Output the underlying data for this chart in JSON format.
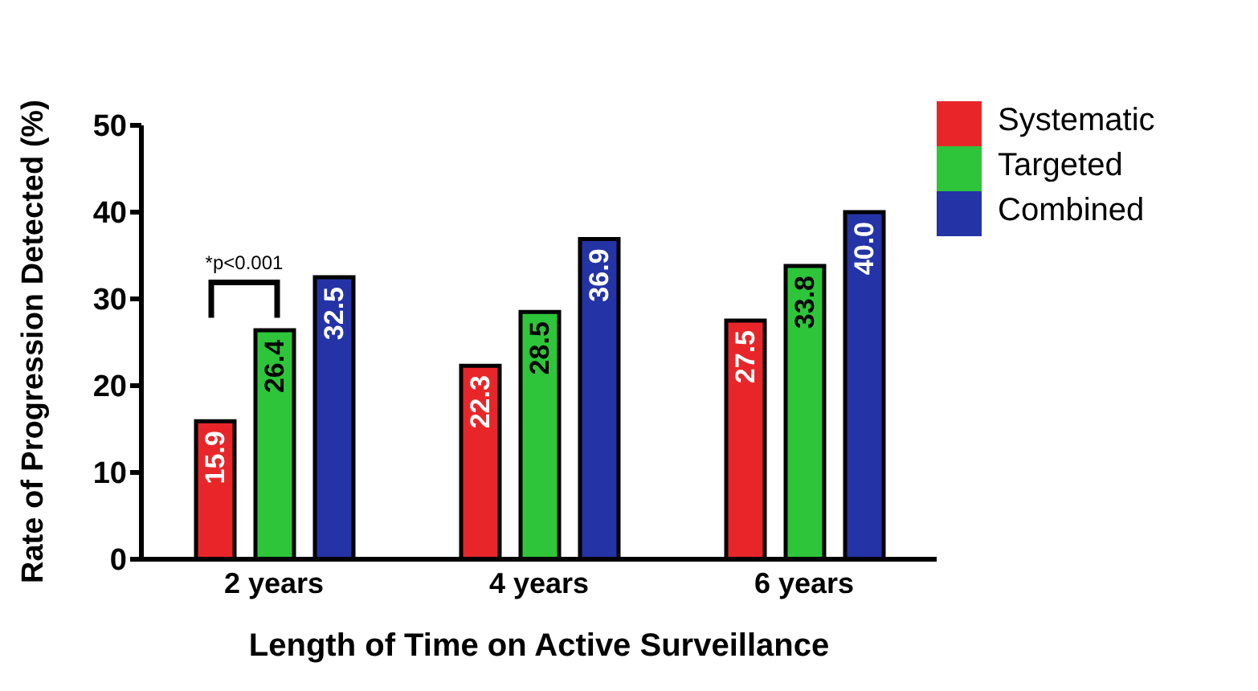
{
  "chart_data": {
    "type": "bar",
    "xlabel": "Length of Time on Active Surveillance",
    "ylabel": "Rate of Progression Detected (%)",
    "categories": [
      "2 years",
      "4 years",
      "6 years"
    ],
    "series": [
      {
        "name": "Systematic",
        "color": "#e8262a",
        "values": [
          15.9,
          22.3,
          27.5
        ],
        "value_labels": [
          "15.9",
          "22.3",
          "27.5"
        ]
      },
      {
        "name": "Targeted",
        "color": "#2ec53a",
        "values": [
          26.4,
          28.5,
          33.8
        ],
        "value_labels": [
          "26.4",
          "28.5",
          "33.8"
        ]
      },
      {
        "name": "Combined",
        "color": "#2433a6",
        "values": [
          32.5,
          36.9,
          40.0
        ],
        "value_labels": [
          "32.5",
          "36.9",
          "40.0"
        ]
      }
    ],
    "ylim": [
      0,
      50
    ],
    "yticks": [
      0,
      10,
      20,
      30,
      40,
      50
    ],
    "grid": false,
    "legend": "right",
    "annotations": [
      "*p<0.001"
    ]
  }
}
